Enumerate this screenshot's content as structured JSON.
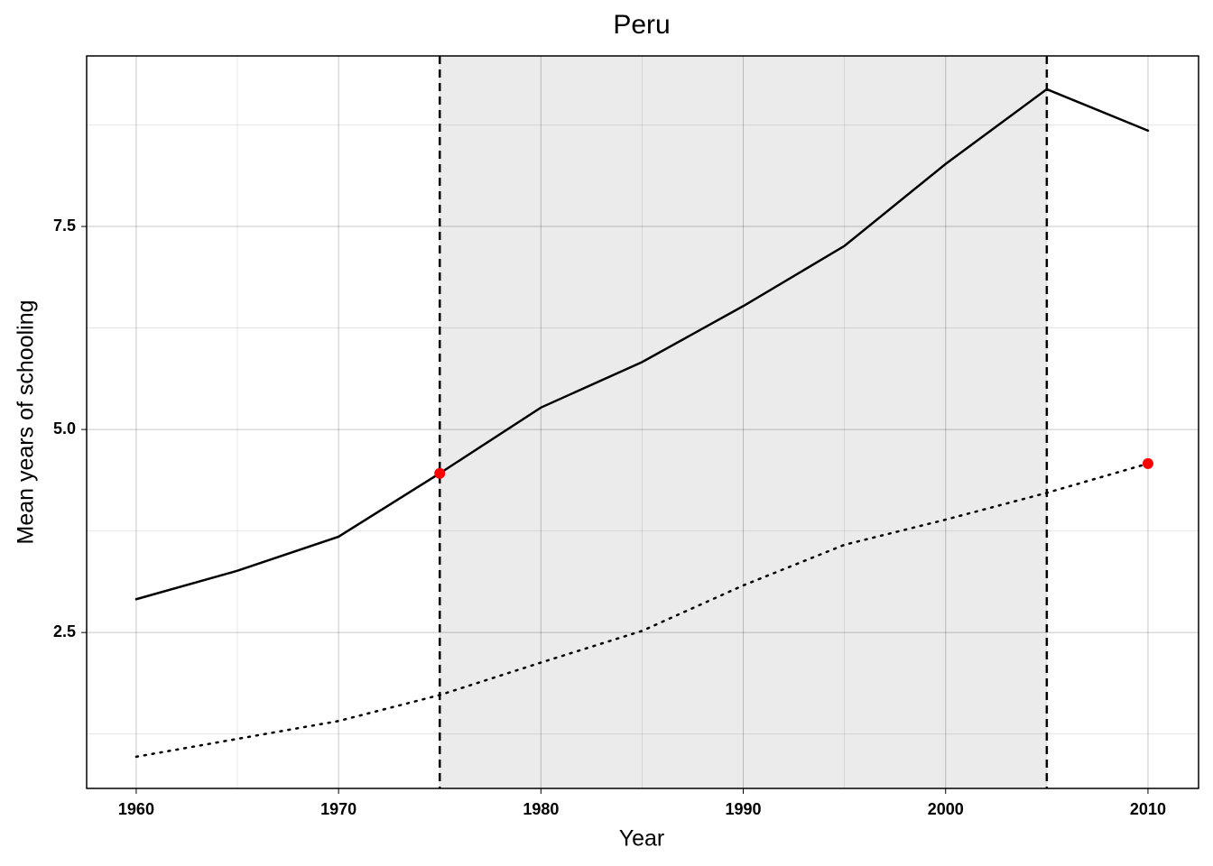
{
  "chart_data": {
    "type": "line",
    "title": "Peru",
    "x_label": "Year",
    "y_label": "Mean years of schooling",
    "x": [
      1960,
      1965,
      1970,
      1975,
      1980,
      1985,
      1990,
      1995,
      2000,
      2005,
      2010
    ],
    "series": [
      {
        "color": "#000000",
        "style": "solid",
        "values": [
          2.91,
          3.26,
          3.68,
          4.46,
          5.27,
          5.83,
          6.52,
          7.26,
          8.27,
          9.19,
          8.68
        ]
      },
      {
        "color": "#000000",
        "style": "dotted",
        "values": [
          0.97,
          1.19,
          1.41,
          1.73,
          2.13,
          2.52,
          3.08,
          3.58,
          3.89,
          4.22,
          4.58
        ]
      }
    ],
    "points": {
      "color": "#ff0000",
      "x": [
        1975,
        2010
      ],
      "values": [
        4.46,
        4.58
      ]
    },
    "shaded_range": [
      1975,
      2005
    ],
    "shade_color": "#ebebeb",
    "xlim": [
      1957.55,
      2012.5
    ],
    "xticks": [
      1960,
      1970,
      1980,
      1990,
      2000,
      2010
    ],
    "x_minor_ticks": [
      1965,
      1975,
      1985,
      1995,
      2005
    ],
    "ylim": [
      0.58,
      9.6
    ],
    "yticks": [
      2.5,
      {
        "value": 5,
        "label": "5.0"
      },
      7.5
    ],
    "y_minor_ticks": [
      1.25,
      3.75,
      6.25,
      8.75
    ],
    "grid": true
  }
}
